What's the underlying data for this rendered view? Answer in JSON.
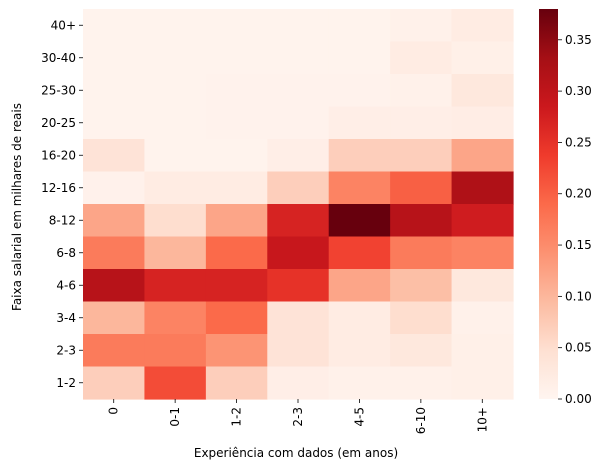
{
  "chart_data": {
    "type": "heatmap",
    "title": "",
    "xlabel": "Experiência com dados (em anos)",
    "ylabel": "Faixa salarial em milhares de reais",
    "x_categories": [
      "0",
      "0-1",
      "1-2",
      "2-3",
      "4-5",
      "6-10",
      "10+"
    ],
    "y_categories": [
      "40+",
      "30-40",
      "25-30",
      "20-25",
      "16-20",
      "12-16",
      "8-12",
      "6-8",
      "4-6",
      "3-4",
      "2-3",
      "1-2"
    ],
    "values": [
      [
        0.004,
        0.004,
        0.004,
        0.004,
        0.004,
        0.01,
        0.02
      ],
      [
        0.004,
        0.004,
        0.004,
        0.004,
        0.004,
        0.02,
        0.012
      ],
      [
        0.004,
        0.004,
        0.007,
        0.007,
        0.006,
        0.01,
        0.03
      ],
      [
        0.004,
        0.004,
        0.007,
        0.006,
        0.015,
        0.015,
        0.018
      ],
      [
        0.04,
        0.004,
        0.005,
        0.015,
        0.07,
        0.07,
        0.12
      ],
      [
        0.008,
        0.02,
        0.02,
        0.07,
        0.16,
        0.2,
        0.32
      ],
      [
        0.12,
        0.05,
        0.12,
        0.27,
        0.38,
        0.31,
        0.28
      ],
      [
        0.17,
        0.1,
        0.19,
        0.29,
        0.23,
        0.17,
        0.16
      ],
      [
        0.31,
        0.27,
        0.27,
        0.25,
        0.12,
        0.09,
        0.03
      ],
      [
        0.1,
        0.16,
        0.19,
        0.04,
        0.02,
        0.05,
        0.01
      ],
      [
        0.17,
        0.17,
        0.14,
        0.04,
        0.02,
        0.03,
        0.012
      ],
      [
        0.07,
        0.22,
        0.07,
        0.015,
        0.01,
        0.01,
        0.012
      ]
    ],
    "colorbar": {
      "min": 0.0,
      "max": 0.38,
      "ticks": [
        "0.00",
        "0.05",
        "0.10",
        "0.15",
        "0.20",
        "0.25",
        "0.30",
        "0.35"
      ],
      "colormap": "Reds"
    },
    "grid": false,
    "legend": "colorbar-right"
  }
}
